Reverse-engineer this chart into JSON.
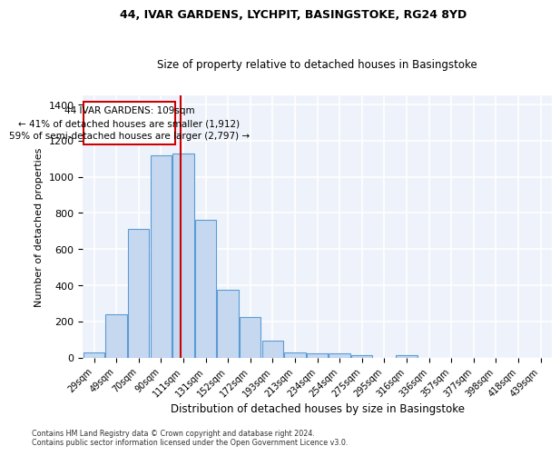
{
  "title1": "44, IVAR GARDENS, LYCHPIT, BASINGSTOKE, RG24 8YD",
  "title2": "Size of property relative to detached houses in Basingstoke",
  "xlabel": "Distribution of detached houses by size in Basingstoke",
  "ylabel": "Number of detached properties",
  "categories": [
    "29sqm",
    "49sqm",
    "70sqm",
    "90sqm",
    "111sqm",
    "131sqm",
    "152sqm",
    "172sqm",
    "193sqm",
    "213sqm",
    "234sqm",
    "254sqm",
    "275sqm",
    "295sqm",
    "316sqm",
    "336sqm",
    "357sqm",
    "377sqm",
    "398sqm",
    "418sqm",
    "439sqm"
  ],
  "values": [
    28,
    240,
    710,
    1120,
    1130,
    760,
    375,
    225,
    95,
    30,
    22,
    22,
    15,
    0,
    12,
    0,
    0,
    0,
    0,
    0,
    0
  ],
  "bar_color": "#c5d8f0",
  "bar_edge_color": "#5b9bd5",
  "background_color": "#eef3fb",
  "grid_color": "#ffffff",
  "property_label": "44 IVAR GARDENS: 109sqm",
  "annotation_line1": "← 41% of detached houses are smaller (1,912)",
  "annotation_line2": "59% of semi-detached houses are larger (2,797) →",
  "vline_x_index": 3.88,
  "vline_color": "#cc0000",
  "box_color": "#cc0000",
  "ylim": [
    0,
    1450
  ],
  "yticks": [
    0,
    200,
    400,
    600,
    800,
    1000,
    1200,
    1400
  ],
  "footer1": "Contains HM Land Registry data © Crown copyright and database right 2024.",
  "footer2": "Contains public sector information licensed under the Open Government Licence v3.0."
}
